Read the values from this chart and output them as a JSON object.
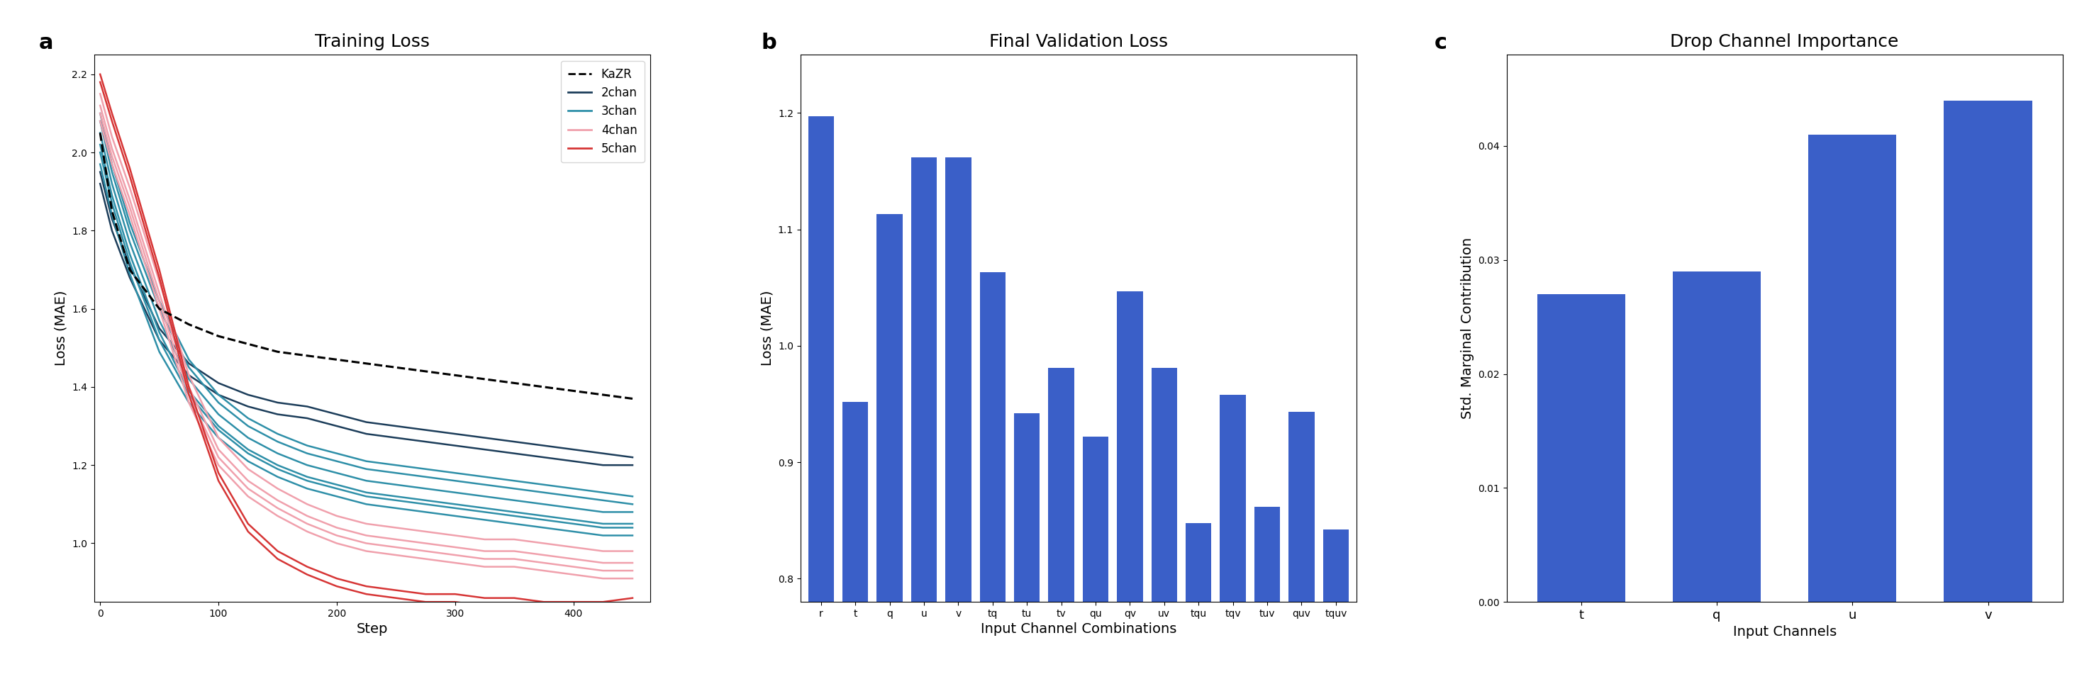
{
  "panel_a": {
    "title": "Training Loss",
    "xlabel": "Step",
    "ylabel": "Loss (MAE)",
    "ylim": [
      0.85,
      2.25
    ],
    "xlim": [
      -5,
      465
    ],
    "kazr": {
      "steps": [
        0,
        10,
        25,
        50,
        75,
        100,
        125,
        150,
        175,
        200,
        225,
        250,
        275,
        300,
        325,
        350,
        375,
        400,
        425,
        450
      ],
      "values": [
        2.05,
        1.85,
        1.7,
        1.6,
        1.56,
        1.53,
        1.51,
        1.49,
        1.48,
        1.47,
        1.46,
        1.45,
        1.44,
        1.43,
        1.42,
        1.41,
        1.4,
        1.39,
        1.38,
        1.37
      ],
      "color": "black",
      "linestyle": "--",
      "label": "KaZR"
    },
    "lines_2chan": {
      "color": "#1c3d5a",
      "label": "2chan",
      "data": [
        [
          0,
          10,
          25,
          50,
          75,
          100,
          125,
          150,
          175,
          200,
          225,
          250,
          275,
          300,
          325,
          350,
          375,
          400,
          425,
          450
        ],
        [
          [
            1.92,
            1.8,
            1.68,
            1.52,
            1.43,
            1.38,
            1.35,
            1.33,
            1.32,
            1.3,
            1.28,
            1.27,
            1.26,
            1.25,
            1.24,
            1.23,
            1.22,
            1.21,
            1.2,
            1.2
          ],
          [
            1.95,
            1.83,
            1.71,
            1.55,
            1.46,
            1.41,
            1.38,
            1.36,
            1.35,
            1.33,
            1.31,
            1.3,
            1.29,
            1.28,
            1.27,
            1.26,
            1.25,
            1.24,
            1.23,
            1.22
          ]
        ]
      ]
    },
    "lines_3chan": {
      "color": "#2e8fa8",
      "label": "3chan",
      "data": [
        [
          0,
          10,
          25,
          50,
          75,
          100,
          125,
          150,
          175,
          200,
          225,
          250,
          275,
          300,
          325,
          350,
          375,
          400,
          425,
          450
        ],
        [
          [
            2.05,
            1.92,
            1.77,
            1.57,
            1.42,
            1.33,
            1.27,
            1.23,
            1.2,
            1.18,
            1.16,
            1.15,
            1.14,
            1.13,
            1.12,
            1.11,
            1.1,
            1.09,
            1.08,
            1.08
          ],
          [
            2.08,
            1.95,
            1.8,
            1.6,
            1.45,
            1.36,
            1.3,
            1.26,
            1.23,
            1.21,
            1.19,
            1.18,
            1.17,
            1.16,
            1.15,
            1.14,
            1.13,
            1.12,
            1.11,
            1.1
          ],
          [
            2.1,
            1.97,
            1.82,
            1.62,
            1.47,
            1.38,
            1.32,
            1.28,
            1.25,
            1.23,
            1.21,
            1.2,
            1.19,
            1.18,
            1.17,
            1.16,
            1.15,
            1.14,
            1.13,
            1.12
          ],
          [
            2.02,
            1.89,
            1.74,
            1.54,
            1.39,
            1.3,
            1.24,
            1.2,
            1.17,
            1.15,
            1.13,
            1.12,
            1.11,
            1.1,
            1.09,
            1.08,
            1.07,
            1.06,
            1.05,
            1.05
          ],
          [
            1.97,
            1.84,
            1.69,
            1.49,
            1.36,
            1.27,
            1.21,
            1.17,
            1.14,
            1.12,
            1.1,
            1.09,
            1.08,
            1.07,
            1.06,
            1.05,
            1.04,
            1.03,
            1.02,
            1.02
          ],
          [
            2.0,
            1.87,
            1.72,
            1.52,
            1.38,
            1.29,
            1.23,
            1.19,
            1.16,
            1.14,
            1.12,
            1.11,
            1.1,
            1.09,
            1.08,
            1.07,
            1.06,
            1.05,
            1.04,
            1.04
          ]
        ]
      ]
    },
    "lines_4chan": {
      "color": "#f0a0ac",
      "label": "4chan",
      "data": [
        [
          0,
          10,
          25,
          50,
          75,
          100,
          125,
          150,
          175,
          200,
          225,
          250,
          275,
          300,
          325,
          350,
          375,
          400,
          425,
          450
        ],
        [
          [
            2.08,
            1.97,
            1.84,
            1.6,
            1.36,
            1.2,
            1.12,
            1.07,
            1.03,
            1.0,
            0.98,
            0.97,
            0.96,
            0.95,
            0.94,
            0.94,
            0.93,
            0.92,
            0.91,
            0.91
          ],
          [
            2.12,
            2.01,
            1.88,
            1.64,
            1.4,
            1.24,
            1.16,
            1.11,
            1.07,
            1.04,
            1.02,
            1.01,
            1.0,
            0.99,
            0.98,
            0.98,
            0.97,
            0.96,
            0.95,
            0.95
          ],
          [
            2.15,
            2.04,
            1.91,
            1.67,
            1.43,
            1.27,
            1.19,
            1.14,
            1.1,
            1.07,
            1.05,
            1.04,
            1.03,
            1.02,
            1.01,
            1.01,
            1.0,
            0.99,
            0.98,
            0.98
          ],
          [
            2.1,
            1.99,
            1.86,
            1.62,
            1.38,
            1.22,
            1.14,
            1.09,
            1.05,
            1.02,
            1.0,
            0.99,
            0.98,
            0.97,
            0.96,
            0.96,
            0.95,
            0.94,
            0.93,
            0.93
          ]
        ]
      ]
    },
    "lines_5chan": {
      "color": "#d63535",
      "label": "5chan",
      "data": [
        [
          0,
          10,
          25,
          50,
          75,
          100,
          125,
          150,
          175,
          200,
          225,
          250,
          275,
          300,
          325,
          350,
          375,
          400,
          425,
          450
        ],
        [
          [
            2.2,
            2.1,
            1.96,
            1.7,
            1.4,
            1.18,
            1.05,
            0.98,
            0.94,
            0.91,
            0.89,
            0.88,
            0.87,
            0.87,
            0.86,
            0.86,
            0.85,
            0.85,
            0.85,
            0.86
          ],
          [
            2.18,
            2.08,
            1.94,
            1.68,
            1.38,
            1.16,
            1.03,
            0.96,
            0.92,
            0.89,
            0.87,
            0.86,
            0.85,
            0.85,
            0.84,
            0.84,
            0.83,
            0.83,
            0.83,
            0.84
          ]
        ]
      ]
    }
  },
  "panel_b": {
    "title": "Final Validation Loss",
    "xlabel": "Input Channel Combinations",
    "ylabel": "Loss (MAE)",
    "ylim": [
      0.78,
      1.25
    ],
    "bar_color": "#3a5fc8",
    "categories": [
      "r",
      "t",
      "q",
      "u",
      "v",
      "tq",
      "tu",
      "tv",
      "qu",
      "qv",
      "uv",
      "tqu",
      "tqv",
      "tuv",
      "quv",
      "tquv"
    ],
    "values": [
      1.197,
      0.952,
      1.113,
      1.162,
      1.162,
      1.063,
      0.942,
      0.981,
      0.922,
      1.047,
      0.981,
      0.848,
      0.958,
      0.862,
      0.943,
      0.842
    ]
  },
  "panel_c": {
    "title": "Drop Channel Importance",
    "xlabel": "Input Channels",
    "ylabel": "Std. Marginal Contribution",
    "ylim": [
      0.0,
      0.048
    ],
    "bar_color": "#3a5fc8",
    "categories": [
      "t",
      "q",
      "u",
      "v"
    ],
    "values": [
      0.027,
      0.029,
      0.041,
      0.044
    ]
  }
}
